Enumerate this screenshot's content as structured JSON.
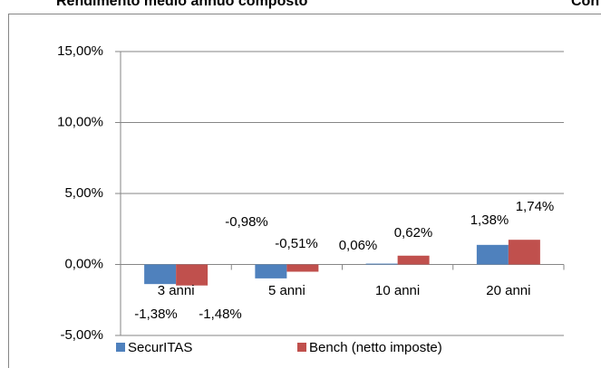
{
  "chart_data": {
    "type": "bar",
    "title": "Rendimento medio annuo composto",
    "title2": "Con",
    "categories": [
      "3 anni",
      "5 anni",
      "10 anni",
      "20 anni"
    ],
    "series": [
      {
        "name": "SecurITAS",
        "color": "#4f81bd",
        "values": [
          -1.38,
          -0.98,
          0.06,
          1.38
        ],
        "value_labels": [
          "-1,38%",
          "-0,98%",
          "0,06%",
          "1,38%"
        ]
      },
      {
        "name": "Bench (netto imposte)",
        "color": "#c0504d",
        "values": [
          -1.48,
          -0.51,
          0.62,
          1.74
        ],
        "value_labels": [
          "-1,48%",
          "-0,51%",
          "0,62%",
          "1,74%"
        ]
      }
    ],
    "ylim": [
      -5,
      15
    ],
    "yticks": [
      {
        "value": -5,
        "label": "-5,00%"
      },
      {
        "value": 0,
        "label": "0,00%"
      },
      {
        "value": 5,
        "label": "5,00%"
      },
      {
        "value": 10,
        "label": "10,00%"
      },
      {
        "value": 15,
        "label": "15,00%"
      }
    ],
    "grid": true,
    "legend": "bottom"
  }
}
